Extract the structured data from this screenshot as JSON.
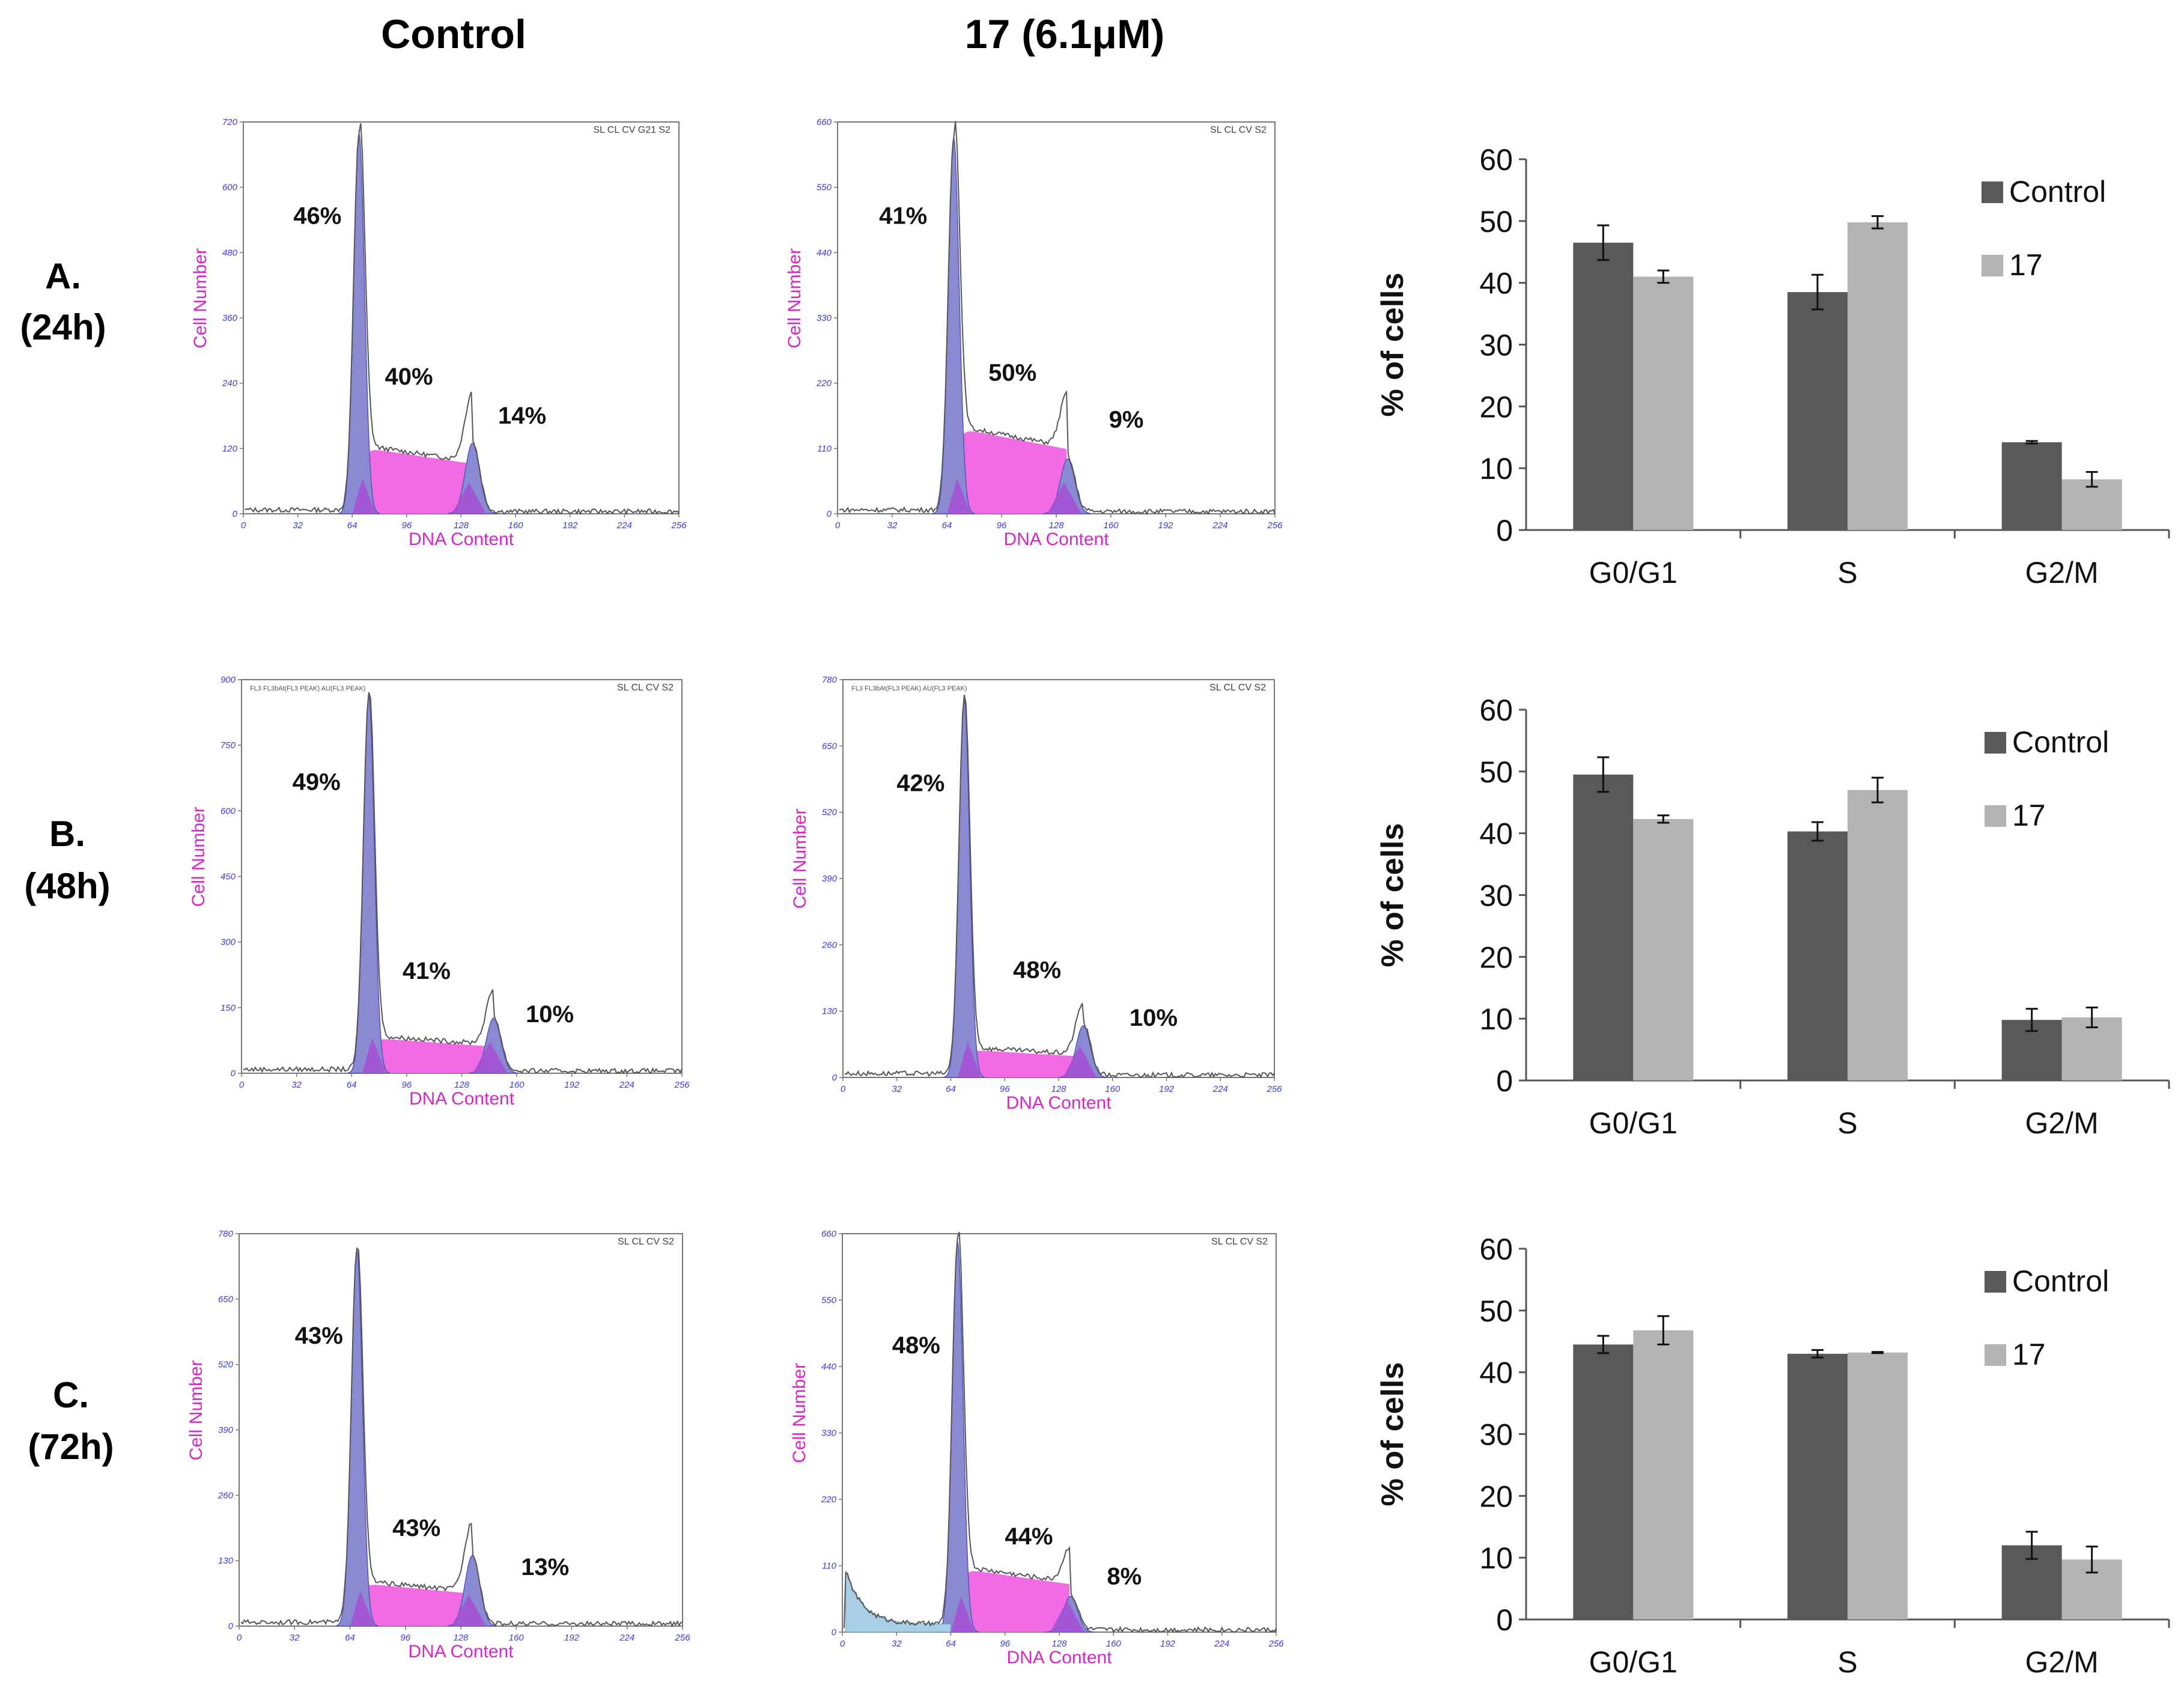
{
  "headers": {
    "control": "Control",
    "treated": "17 (6.1μM)"
  },
  "rows": [
    {
      "letter": "A.",
      "time": "(24h)"
    },
    {
      "letter": "B.",
      "time": "(48h)"
    },
    {
      "letter": "C.",
      "time": "(72h)"
    }
  ],
  "colors": {
    "control_bar": "#595959",
    "treated_bar": "#b3b3b3",
    "g1_peak": "#8a8ad2",
    "s_phase": "#f05ee3",
    "overlap": "#a64fd6",
    "debris": "#a9cfe6",
    "axis_blue": "#3a3ae0",
    "axis_magenta": "#d625c8"
  },
  "histograms": [
    {
      "label": "A-control",
      "corner": "SL CL CV G21 S2",
      "ymax": 720,
      "yticks": [
        "0",
        "120",
        "240",
        "360",
        "480",
        "600",
        "720"
      ],
      "xticks": [
        "0",
        "32",
        "64",
        "96",
        "128",
        "160",
        "192",
        "224",
        "256"
      ],
      "xlabel": "DNA Content",
      "ylabel": "Cell Number",
      "percents": [
        "46%",
        "40%",
        "14%"
      ],
      "g1": 0.97,
      "s": 0.17,
      "g2": 0.18,
      "debris": false
    },
    {
      "label": "A-treated",
      "corner": "SL CL CV S2",
      "ymax": 660,
      "yticks": [
        "0",
        "110",
        "220",
        "330",
        "440",
        "550",
        "660"
      ],
      "xticks": [
        "0",
        "32",
        "64",
        "96",
        "128",
        "160",
        "192",
        "224",
        "256"
      ],
      "xlabel": "DNA Content",
      "ylabel": "Cell Number",
      "percents": [
        "41%",
        "50%",
        "9%"
      ],
      "g1": 0.96,
      "s": 0.22,
      "g2": 0.14,
      "debris": false
    },
    {
      "label": "B-control",
      "corner": "SL CL CV S2",
      "ymax": 900,
      "yticks": [
        "0",
        "150",
        "300",
        "450",
        "600",
        "750",
        "900"
      ],
      "xticks": [
        "0",
        "32",
        "64",
        "96",
        "128",
        "160",
        "192",
        "224",
        "256"
      ],
      "xlabel": "DNA Content",
      "ylabel": "Cell Number",
      "percents": [
        "49%",
        "41%",
        "10%"
      ],
      "g1": 0.96,
      "s": 0.09,
      "g2": 0.14,
      "debris": false,
      "header": "FL3 FL3bAt(FL3 PEAK) AU(FL3 PEAK)"
    },
    {
      "label": "B-treated",
      "corner": "SL CL CV S2",
      "ymax": 780,
      "yticks": [
        "0",
        "130",
        "260",
        "390",
        "520",
        "650",
        "780"
      ],
      "xticks": [
        "0",
        "32",
        "64",
        "96",
        "128",
        "160",
        "192",
        "224",
        "256"
      ],
      "xlabel": "DNA Content",
      "ylabel": "Cell Number",
      "percents": [
        "42%",
        "48%",
        "10%"
      ],
      "g1": 0.95,
      "s": 0.07,
      "g2": 0.13,
      "debris": false,
      "header": "FL3 FL3bAt(FL3 PEAK) AU(FL3 PEAK)"
    },
    {
      "label": "C-control",
      "corner": "SL CL CV S2",
      "ymax": 780,
      "yticks": [
        "0",
        "130",
        "260",
        "390",
        "520",
        "650",
        "780"
      ],
      "xticks": [
        "0",
        "32",
        "64",
        "96",
        "128",
        "160",
        "192",
        "224",
        "256"
      ],
      "xlabel": "DNA Content",
      "ylabel": "Cell Number",
      "percents": [
        "43%",
        "43%",
        "13%"
      ],
      "g1": 0.96,
      "s": 0.11,
      "g2": 0.18,
      "debris": false
    },
    {
      "label": "C-treated",
      "corner": "SL CL CV S2",
      "ymax": 660,
      "yticks": [
        "0",
        "110",
        "220",
        "330",
        "440",
        "550",
        "660"
      ],
      "xticks": [
        "0",
        "32",
        "64",
        "96",
        "128",
        "160",
        "192",
        "224",
        "256"
      ],
      "xlabel": "DNA Content",
      "ylabel": "Cell Number",
      "percents": [
        "48%",
        "44%",
        "8%"
      ],
      "g1": 0.98,
      "s": 0.16,
      "g2": 0.09,
      "debris": true
    }
  ],
  "chart_data": [
    {
      "type": "bar",
      "title": "A. (24h)",
      "categories": [
        "G0/G1",
        "S",
        "G2/M"
      ],
      "series": [
        {
          "name": "Control",
          "values": [
            46.5,
            38.5,
            14.2
          ],
          "errors": [
            2.8,
            2.8,
            0.2
          ]
        },
        {
          "name": "17",
          "values": [
            41.0,
            49.8,
            8.2
          ],
          "errors": [
            1.0,
            1.0,
            1.2
          ]
        }
      ],
      "ylabel": "% of cells",
      "ylim": [
        0,
        60
      ],
      "yticks": [
        "0",
        "10",
        "20",
        "30",
        "40",
        "50",
        "60"
      ],
      "legend": "top-right"
    },
    {
      "type": "bar",
      "title": "B. (48h)",
      "categories": [
        "G0/G1",
        "S",
        "G2/M"
      ],
      "series": [
        {
          "name": "Control",
          "values": [
            49.5,
            40.3,
            9.8
          ],
          "errors": [
            2.8,
            1.5,
            1.8
          ]
        },
        {
          "name": "17",
          "values": [
            42.3,
            47.0,
            10.2
          ],
          "errors": [
            0.6,
            2.0,
            1.6
          ]
        }
      ],
      "ylabel": "% of cells",
      "ylim": [
        0,
        60
      ],
      "yticks": [
        "0",
        "10",
        "20",
        "30",
        "40",
        "50",
        "60"
      ],
      "legend": "top-right"
    },
    {
      "type": "bar",
      "title": "C. (72h)",
      "categories": [
        "G0/G1",
        "S",
        "G2/M"
      ],
      "series": [
        {
          "name": "Control",
          "values": [
            44.5,
            43.0,
            12.0
          ],
          "errors": [
            1.4,
            0.6,
            2.2
          ]
        },
        {
          "name": "17",
          "values": [
            46.8,
            43.2,
            9.7
          ],
          "errors": [
            2.3,
            0.1,
            2.1
          ]
        }
      ],
      "ylabel": "% of cells",
      "ylim": [
        0,
        60
      ],
      "yticks": [
        "0",
        "10",
        "20",
        "30",
        "40",
        "50",
        "60"
      ],
      "legend": "top-right"
    }
  ]
}
